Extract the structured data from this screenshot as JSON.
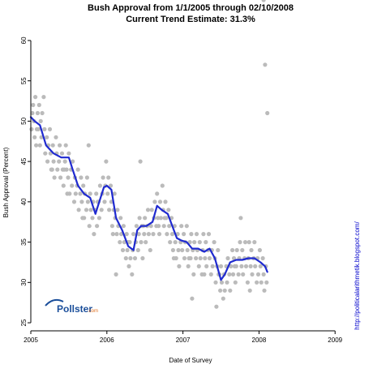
{
  "chart_data": {
    "type": "scatter",
    "title": "Bush Approval from 1/1/2005 through 02/10/2008",
    "subtitle": "Current Trend Estimate: 31.3%",
    "xlabel": "Date of Survey",
    "ylabel": "Bush Approval (Percent)",
    "side_label": "http://politicalarithmetik.blogspot.com/",
    "logo_text": "Pollster",
    "logo_suffix": ".com",
    "xlim": [
      2005.0,
      2009.2
    ],
    "ylim": [
      24,
      61
    ],
    "x_ticks": [
      2005,
      2006,
      2007,
      2008,
      2009
    ],
    "x_tick_labels": [
      "2005",
      "2006",
      "2007",
      "2008",
      "2009"
    ],
    "y_ticks": [
      25,
      30,
      35,
      40,
      45,
      50,
      55,
      60
    ],
    "y_tick_labels": [
      "25",
      "30",
      "35",
      "40",
      "45",
      "50",
      "55",
      "60"
    ],
    "grid": false,
    "colors": {
      "points": "#bbbbbb",
      "trend": "#1f2ad0",
      "axis": "#000000"
    },
    "trend": {
      "name": "",
      "x": [
        2005.0,
        2005.05,
        2005.12,
        2005.2,
        2005.3,
        2005.4,
        2005.5,
        2005.55,
        2005.62,
        2005.7,
        2005.78,
        2005.85,
        2005.9,
        2005.96,
        2006.0,
        2006.06,
        2006.12,
        2006.2,
        2006.28,
        2006.35,
        2006.4,
        2006.45,
        2006.52,
        2006.6,
        2006.66,
        2006.72,
        2006.8,
        2006.86,
        2006.92,
        2006.98,
        2007.05,
        2007.12,
        2007.2,
        2007.28,
        2007.35,
        2007.42,
        2007.5,
        2007.55,
        2007.62,
        2007.7,
        2007.78,
        2007.86,
        2007.94,
        2008.02,
        2008.08,
        2008.11
      ],
      "y": [
        50.5,
        50.0,
        49.5,
        47.0,
        46.0,
        45.5,
        45.5,
        44.0,
        42.0,
        41.0,
        40.5,
        38.5,
        40.0,
        41.8,
        42.0,
        41.5,
        38.0,
        36.5,
        34.5,
        34.0,
        36.5,
        37.0,
        37.0,
        37.5,
        39.5,
        39.0,
        38.5,
        37.0,
        35.5,
        35.2,
        35.0,
        34.2,
        34.2,
        33.8,
        34.2,
        33.0,
        30.3,
        31.0,
        32.5,
        32.8,
        32.8,
        33.0,
        33.0,
        32.5,
        32.0,
        31.3
      ]
    },
    "points_x": [
      2005.01,
      2005.02,
      2005.03,
      2005.04,
      2005.05,
      2005.06,
      2005.07,
      2005.09,
      2005.1,
      2005.11,
      2005.13,
      2005.14,
      2005.15,
      2005.17,
      2005.18,
      2005.19,
      2005.21,
      2005.22,
      2005.23,
      2005.25,
      2005.26,
      2005.27,
      2005.29,
      2005.3,
      2005.31,
      2005.33,
      2005.34,
      2005.35,
      2005.37,
      2005.38,
      2005.39,
      2005.41,
      2005.42,
      2005.43,
      2005.45,
      2005.46,
      2005.47,
      2005.49,
      2005.5,
      2005.51,
      2005.53,
      2005.54,
      2005.55,
      2005.57,
      2005.58,
      2005.59,
      2005.61,
      2005.62,
      2005.63,
      2005.65,
      2005.66,
      2005.67,
      2005.69,
      2005.7,
      2005.71,
      2005.73,
      2005.74,
      2005.75,
      2005.77,
      2005.78,
      2005.79,
      2005.81,
      2005.82,
      2005.83,
      2005.85,
      2005.86,
      2005.87,
      2005.89,
      2005.9,
      2005.91,
      2005.93,
      2005.94,
      2005.95,
      2005.97,
      2005.98,
      2005.99,
      2006.01,
      2006.02,
      2006.03,
      2006.05,
      2006.06,
      2006.07,
      2006.09,
      2006.1,
      2006.11,
      2006.13,
      2006.14,
      2006.15,
      2006.17,
      2006.18,
      2006.19,
      2006.21,
      2006.22,
      2006.23,
      2006.25,
      2006.26,
      2006.27,
      2006.29,
      2006.3,
      2006.31,
      2006.33,
      2006.34,
      2006.35,
      2006.37,
      2006.38,
      2006.39,
      2006.41,
      2006.42,
      2006.43,
      2006.45,
      2006.46,
      2006.47,
      2006.49,
      2006.5,
      2006.51,
      2006.53,
      2006.54,
      2006.55,
      2006.57,
      2006.58,
      2006.59,
      2006.61,
      2006.62,
      2006.63,
      2006.65,
      2006.66,
      2006.67,
      2006.69,
      2006.7,
      2006.71,
      2006.73,
      2006.74,
      2006.75,
      2006.77,
      2006.78,
      2006.79,
      2006.81,
      2006.82,
      2006.83,
      2006.85,
      2006.86,
      2006.87,
      2006.89,
      2006.9,
      2006.91,
      2006.93,
      2006.94,
      2006.95,
      2006.97,
      2006.98,
      2006.99,
      2007.01,
      2007.02,
      2007.03,
      2007.05,
      2007.06,
      2007.07,
      2007.09,
      2007.1,
      2007.11,
      2007.13,
      2007.14,
      2007.15,
      2007.17,
      2007.18,
      2007.19,
      2007.21,
      2007.22,
      2007.23,
      2007.25,
      2007.26,
      2007.27,
      2007.29,
      2007.3,
      2007.31,
      2007.33,
      2007.34,
      2007.35,
      2007.37,
      2007.38,
      2007.39,
      2007.41,
      2007.42,
      2007.43,
      2007.45,
      2007.46,
      2007.47,
      2007.49,
      2007.5,
      2007.51,
      2007.53,
      2007.54,
      2007.55,
      2007.57,
      2007.58,
      2007.59,
      2007.61,
      2007.62,
      2007.63,
      2007.65,
      2007.66,
      2007.67,
      2007.69,
      2007.7,
      2007.71,
      2007.73,
      2007.74,
      2007.75,
      2007.77,
      2007.78,
      2007.79,
      2007.81,
      2007.82,
      2007.83,
      2007.85,
      2007.86,
      2007.87,
      2007.89,
      2007.9,
      2007.91,
      2007.93,
      2007.94,
      2007.95,
      2007.97,
      2007.98,
      2007.99,
      2008.01,
      2008.02,
      2008.03,
      2008.05,
      2008.06,
      2008.07,
      2008.09,
      2008.1,
      2008.11,
      2005.08,
      2005.28,
      2005.48,
      2005.68,
      2005.88,
      2006.08,
      2006.28,
      2006.48,
      2006.68,
      2006.88,
      2007.08,
      2007.28,
      2007.48,
      2007.68,
      2007.88,
      2008.08,
      2005.12,
      2005.44,
      2005.76,
      2006.12,
      2006.44,
      2006.76,
      2007.12,
      2007.44,
      2007.76,
      2008.06
    ],
    "points_y": [
      49,
      51,
      52,
      50,
      48,
      53,
      47,
      51,
      49,
      52,
      50,
      48,
      51,
      53,
      49,
      46,
      48,
      45,
      47,
      49,
      46,
      44,
      47,
      45,
      43,
      48,
      46,
      44,
      45,
      47,
      43,
      46,
      44,
      42,
      45,
      47,
      44,
      43,
      46,
      41,
      44,
      42,
      45,
      40,
      43,
      41,
      42,
      44,
      39,
      41,
      43,
      40,
      42,
      38,
      41,
      39,
      43,
      40,
      37,
      41,
      39,
      38,
      40,
      36,
      39,
      41,
      37,
      40,
      38,
      42,
      39,
      41,
      43,
      40,
      42,
      45,
      41,
      43,
      39,
      42,
      40,
      37,
      39,
      41,
      38,
      36,
      39,
      37,
      35,
      38,
      36,
      34,
      37,
      35,
      33,
      36,
      34,
      32,
      35,
      33,
      31,
      34,
      36,
      33,
      35,
      37,
      34,
      36,
      38,
      35,
      37,
      33,
      36,
      38,
      35,
      37,
      39,
      36,
      34,
      37,
      39,
      36,
      38,
      40,
      37,
      41,
      38,
      36,
      40,
      38,
      42,
      39,
      37,
      40,
      38,
      36,
      39,
      37,
      35,
      38,
      36,
      34,
      37,
      35,
      33,
      36,
      34,
      32,
      35,
      37,
      34,
      36,
      33,
      35,
      37,
      34,
      32,
      35,
      33,
      36,
      34,
      31,
      35,
      33,
      36,
      34,
      32,
      35,
      33,
      31,
      34,
      36,
      33,
      35,
      32,
      34,
      36,
      33,
      31,
      34,
      32,
      35,
      33,
      30,
      32,
      34,
      31,
      29,
      32,
      30,
      28,
      31,
      29,
      32,
      30,
      33,
      31,
      29,
      32,
      34,
      31,
      33,
      30,
      32,
      34,
      31,
      33,
      35,
      32,
      34,
      31,
      33,
      35,
      32,
      30,
      33,
      35,
      32,
      34,
      31,
      33,
      35,
      32,
      30,
      33,
      31,
      34,
      32,
      30,
      33,
      31,
      29,
      32,
      30,
      51,
      49,
      44,
      41,
      38,
      40,
      36,
      35,
      37,
      37,
      33,
      33,
      31,
      31,
      32,
      29,
      57,
      47,
      44,
      47,
      31,
      45,
      38,
      28,
      27,
      38
    ]
  }
}
